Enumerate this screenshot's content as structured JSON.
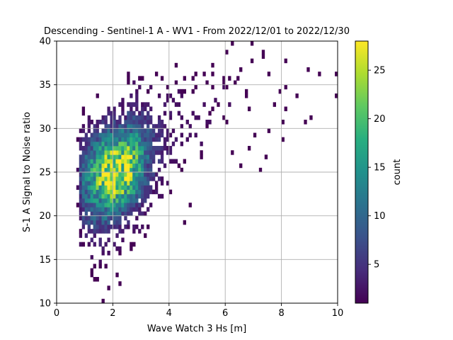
{
  "chart_data": {
    "type": "heatmap",
    "title": "Descending - Sentinel-1 A - WV1 - From 2022/12/01 to 2022/12/30",
    "xlabel": "Wave Watch 3 Hs [m]",
    "ylabel": "S-1 A Signal to Noise ratio",
    "xlim": [
      0,
      10
    ],
    "ylim": [
      10,
      40
    ],
    "xticks": [
      "0",
      "2",
      "4",
      "6",
      "8",
      "10"
    ],
    "yticks": [
      "10",
      "15",
      "20",
      "25",
      "30",
      "35",
      "40"
    ],
    "grid": true,
    "colormap": "viridis",
    "colorbar": {
      "label": "count",
      "range": [
        1,
        28
      ],
      "ticks": [
        "5",
        "10",
        "15",
        "20",
        "25"
      ]
    },
    "bins": {
      "x_width": 0.1,
      "y_width": 0.5
    },
    "density_summary": {
      "peak_count": 28,
      "peak_location": {
        "x": 2.0,
        "y": 26.0
      },
      "core_spread": {
        "x_sigma": 0.8,
        "y_sigma": 3.5
      },
      "tail_direction": "toward higher Hs and higher SNR (up to x~10, y~40)",
      "scatter_points": [
        [
          1.6,
          10.2
        ],
        [
          1.8,
          11.5
        ],
        [
          2.3,
          12.0
        ],
        [
          1.3,
          12.8
        ],
        [
          2.1,
          13.4
        ],
        [
          1.5,
          14.2
        ],
        [
          0.9,
          16.5
        ],
        [
          0.8,
          18.2
        ],
        [
          4.5,
          19.2
        ],
        [
          4.7,
          21.0
        ],
        [
          6.2,
          27.0
        ],
        [
          6.8,
          27.6
        ],
        [
          7.4,
          26.8
        ],
        [
          7.2,
          25.4
        ],
        [
          6.6,
          25.8
        ],
        [
          7.0,
          29.0
        ],
        [
          7.5,
          29.8
        ],
        [
          8.0,
          28.9
        ],
        [
          8.8,
          30.7
        ],
        [
          8.2,
          32.0
        ],
        [
          7.7,
          32.8
        ],
        [
          7.9,
          34.0
        ],
        [
          8.5,
          33.6
        ],
        [
          8.2,
          34.8
        ],
        [
          8.9,
          36.7
        ],
        [
          9.3,
          36.3
        ],
        [
          9.9,
          36.3
        ],
        [
          9.9,
          33.9
        ],
        [
          7.5,
          36.1
        ],
        [
          6.9,
          37.6
        ],
        [
          7.3,
          38.1
        ],
        [
          7.3,
          38.7
        ],
        [
          6.1,
          38.8
        ],
        [
          6.2,
          39.5
        ],
        [
          6.9,
          39.8
        ],
        [
          5.6,
          37.4
        ],
        [
          5.9,
          35.9
        ],
        [
          5.2,
          36.4
        ],
        [
          8.2,
          37.5
        ],
        [
          6.5,
          36.9
        ],
        [
          4.3,
          37.3
        ],
        [
          2.5,
          36.4
        ],
        [
          3.5,
          36.0
        ],
        [
          4.6,
          35.6
        ],
        [
          6.0,
          34.9
        ],
        [
          9.0,
          31.1
        ],
        [
          8.0,
          30.5
        ]
      ]
    }
  }
}
